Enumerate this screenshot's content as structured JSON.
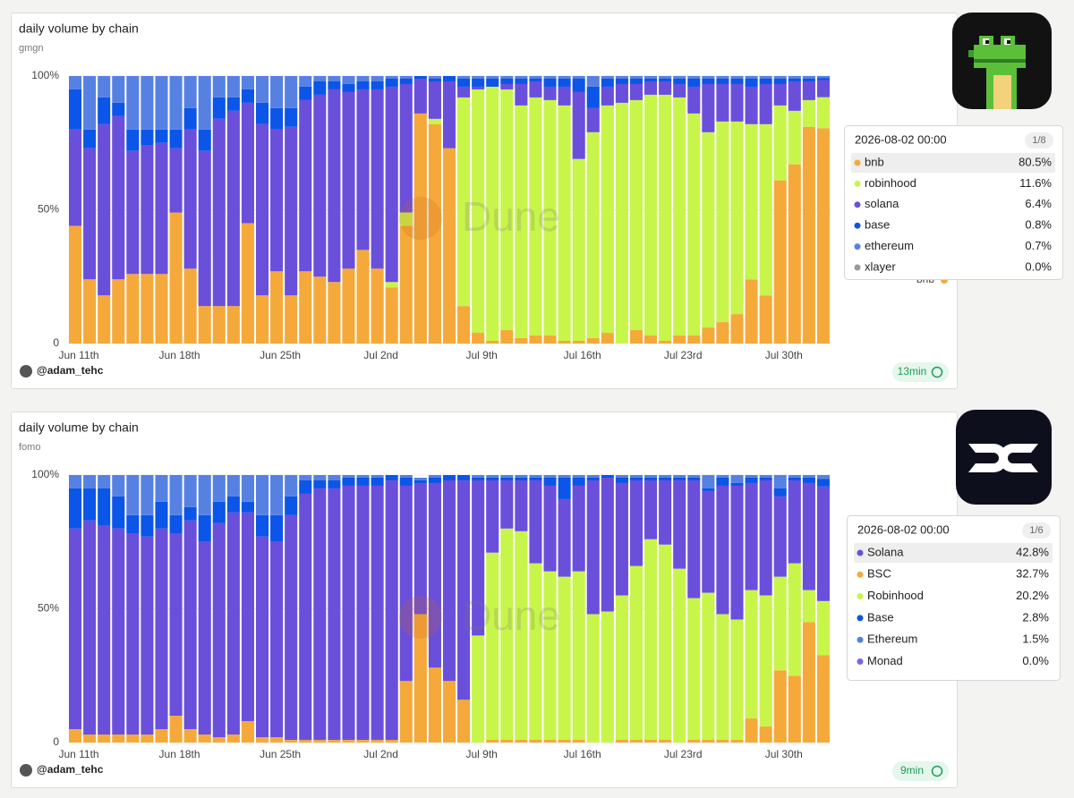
{
  "chart_data": [
    {
      "type": "bar",
      "stacked": true,
      "title": "daily volume by chain",
      "subtitle": "gmgn",
      "categories": [
        "Jun 11th",
        null,
        null,
        null,
        null,
        null,
        null,
        "Jun 18th",
        null,
        null,
        null,
        null,
        null,
        null,
        "Jun 25th",
        null,
        null,
        null,
        null,
        null,
        null,
        "Jul 2nd",
        null,
        null,
        null,
        null,
        null,
        null,
        "Jul 9th",
        null,
        null,
        null,
        null,
        null,
        null,
        "Jul 16th",
        null,
        null,
        null,
        null,
        null,
        null,
        "Jul 23rd",
        null,
        null,
        null,
        null,
        null,
        null,
        "Jul 30th",
        null,
        null,
        null
      ],
      "series": [
        {
          "name": "bnb",
          "color": "#f5a93a",
          "values": [
            44,
            24,
            18,
            24,
            26,
            26,
            26,
            49,
            28,
            14,
            14,
            14,
            45,
            18,
            27,
            18,
            27,
            25,
            23,
            28,
            35,
            28,
            21,
            44,
            86,
            82,
            73,
            14,
            4,
            1,
            5,
            2,
            3,
            3,
            1,
            1,
            2,
            4,
            0,
            5,
            3,
            1,
            3,
            3,
            6,
            8,
            11,
            24,
            18,
            61,
            67,
            81,
            80.5
          ]
        },
        {
          "name": "robinhood",
          "color": "#c8f54a",
          "values": [
            0,
            0,
            0,
            0,
            0,
            0,
            0,
            0,
            0,
            0,
            0,
            0,
            0,
            0,
            0,
            0,
            0,
            0,
            0,
            0,
            0,
            0,
            2,
            5,
            0,
            2,
            0,
            78,
            91,
            95,
            90,
            87,
            89,
            88,
            88,
            68,
            77,
            85,
            90,
            86,
            90,
            92,
            89,
            83,
            73,
            75,
            72,
            58,
            64,
            28,
            20,
            10,
            11.6
          ]
        },
        {
          "name": "solana",
          "color": "#6a4fdb",
          "values": [
            36,
            49,
            64,
            61,
            46,
            48,
            49,
            24,
            52,
            58,
            70,
            73,
            45,
            64,
            53,
            63,
            64,
            68,
            72,
            66,
            60,
            67,
            73,
            48,
            13,
            14,
            25,
            4,
            1,
            0,
            2,
            8,
            6,
            5,
            7,
            25,
            9,
            7,
            7,
            6,
            5,
            5,
            5,
            10,
            18,
            14,
            14,
            14,
            15,
            8,
            11,
            7,
            6.4
          ]
        },
        {
          "name": "base",
          "color": "#0b55e8",
          "values": [
            15,
            7,
            10,
            5,
            8,
            6,
            5,
            7,
            8,
            8,
            8,
            5,
            5,
            8,
            8,
            7,
            5,
            5,
            3,
            3,
            3,
            3,
            3,
            2,
            1,
            1,
            2,
            3,
            3,
            3,
            2,
            2,
            1,
            3,
            3,
            5,
            8,
            3,
            2,
            2,
            1,
            1,
            2,
            3,
            2,
            2,
            2,
            3,
            2,
            2,
            1,
            1,
            0.8
          ]
        },
        {
          "name": "ethereum",
          "color": "#5681e3",
          "values": [
            5,
            20,
            8,
            10,
            20,
            20,
            20,
            20,
            12,
            20,
            8,
            8,
            5,
            10,
            12,
            12,
            4,
            2,
            2,
            3,
            2,
            2,
            1,
            1,
            0,
            1,
            0,
            1,
            1,
            1,
            1,
            1,
            1,
            1,
            1,
            1,
            4,
            1,
            1,
            1,
            1,
            1,
            1,
            1,
            1,
            1,
            1,
            1,
            1,
            1,
            1,
            1,
            0.7
          ]
        }
      ],
      "ylim": [
        0,
        100
      ],
      "yticks": [
        0,
        {
          "value": 50,
          "label": "50%"
        },
        {
          "value": 100,
          "label": "100%"
        }
      ],
      "grid": true,
      "watermark": "Dune",
      "author": "@adam_tehc",
      "freshness": "13min",
      "legend_visible": "bnb",
      "tooltip": {
        "title": "2026-08-02 00:00",
        "page": "1/8",
        "rows": [
          {
            "name": "bnb",
            "value": "80.5%",
            "color": "#f5a93a"
          },
          {
            "name": "robinhood",
            "value": "11.6%",
            "color": "#c8f54a"
          },
          {
            "name": "solana",
            "value": "6.4%",
            "color": "#6a4fdb"
          },
          {
            "name": "base",
            "value": "0.8%",
            "color": "#0b55e8"
          },
          {
            "name": "ethereum",
            "value": "0.7%",
            "color": "#5681e3"
          },
          {
            "name": "xlayer",
            "value": "0.0%",
            "color": "#9a9a9a"
          }
        ]
      }
    },
    {
      "type": "bar",
      "stacked": true,
      "title": "daily volume by chain",
      "subtitle": "fomo",
      "categories": [
        "Jun 11th",
        null,
        null,
        null,
        null,
        null,
        null,
        "Jun 18th",
        null,
        null,
        null,
        null,
        null,
        null,
        "Jun 25th",
        null,
        null,
        null,
        null,
        null,
        null,
        "Jul 2nd",
        null,
        null,
        null,
        null,
        null,
        null,
        "Jul 9th",
        null,
        null,
        null,
        null,
        null,
        null,
        "Jul 16th",
        null,
        null,
        null,
        null,
        null,
        null,
        "Jul 23rd",
        null,
        null,
        null,
        null,
        null,
        null,
        "Jul 30th",
        null,
        null,
        null
      ],
      "series": [
        {
          "name": "BSC",
          "color": "#f5a93a",
          "values": [
            5,
            3,
            3,
            3,
            3,
            3,
            5,
            10,
            5,
            3,
            2,
            3,
            8,
            2,
            2,
            1,
            1,
            1,
            1,
            1,
            1,
            1,
            1,
            23,
            48,
            28,
            23,
            16,
            0,
            1,
            1,
            1,
            1,
            1,
            1,
            1,
            0,
            0,
            1,
            1,
            1,
            1,
            0,
            1,
            1,
            1,
            1,
            9,
            6,
            27,
            25,
            45,
            32.7
          ]
        },
        {
          "name": "Robinhood",
          "color": "#c8f54a",
          "values": [
            0,
            0,
            0,
            0,
            0,
            0,
            0,
            0,
            0,
            0,
            0,
            0,
            0,
            0,
            0,
            0,
            0,
            0,
            0,
            0,
            0,
            0,
            0,
            0,
            0,
            0,
            0,
            0,
            40,
            70,
            79,
            78,
            66,
            63,
            61,
            63,
            48,
            49,
            54,
            65,
            75,
            73,
            65,
            53,
            55,
            47,
            45,
            48,
            49,
            35,
            42,
            12,
            20.2
          ]
        },
        {
          "name": "Solana",
          "color": "#6a4fdb",
          "values": [
            75,
            80,
            78,
            77,
            75,
            74,
            75,
            68,
            78,
            72,
            80,
            83,
            78,
            75,
            73,
            84,
            92,
            94,
            94,
            95,
            95,
            95,
            97,
            73,
            49,
            69,
            75,
            82,
            58,
            27,
            18,
            19,
            31,
            32,
            29,
            32,
            50,
            50,
            42,
            32,
            22,
            24,
            33,
            44,
            38,
            48,
            50,
            40,
            43,
            30,
            31,
            40,
            42.8
          ]
        },
        {
          "name": "Base",
          "color": "#0b55e8",
          "values": [
            15,
            12,
            14,
            12,
            7,
            8,
            10,
            7,
            5,
            10,
            8,
            6,
            4,
            8,
            10,
            7,
            5,
            3,
            3,
            3,
            3,
            3,
            2,
            3,
            1,
            2,
            2,
            2,
            1,
            1,
            1,
            1,
            1,
            3,
            8,
            3,
            1,
            1,
            2,
            1,
            1,
            1,
            1,
            1,
            1,
            3,
            1,
            2,
            1,
            3,
            1,
            2,
            2.8
          ]
        },
        {
          "name": "Ethereum",
          "color": "#5681e3",
          "values": [
            5,
            5,
            5,
            8,
            15,
            15,
            10,
            15,
            12,
            15,
            10,
            8,
            10,
            15,
            15,
            8,
            2,
            2,
            2,
            1,
            1,
            1,
            0,
            1,
            1,
            1,
            0,
            0,
            1,
            1,
            1,
            1,
            1,
            1,
            1,
            1,
            1,
            0,
            1,
            1,
            1,
            1,
            1,
            1,
            5,
            1,
            3,
            1,
            1,
            5,
            1,
            1,
            1.5
          ]
        }
      ],
      "ylim": [
        0,
        100
      ],
      "yticks": [
        0,
        {
          "value": 50,
          "label": "50%"
        },
        {
          "value": 100,
          "label": "100%"
        }
      ],
      "grid": true,
      "watermark": "Dune",
      "author": "@adam_tehc",
      "freshness": "9min",
      "tooltip": {
        "title": "2026-08-02 00:00",
        "page": "1/6",
        "rows": [
          {
            "name": "Solana",
            "value": "42.8%",
            "color": "#6a4fdb"
          },
          {
            "name": "BSC",
            "value": "32.7%",
            "color": "#f5a93a"
          },
          {
            "name": "Robinhood",
            "value": "20.2%",
            "color": "#c8f54a"
          },
          {
            "name": "Base",
            "value": "2.8%",
            "color": "#0b55e8"
          },
          {
            "name": "Ethereum",
            "value": "1.5%",
            "color": "#5681e3"
          },
          {
            "name": "Monad",
            "value": "0.0%",
            "color": "#7f63e6"
          }
        ]
      }
    }
  ]
}
